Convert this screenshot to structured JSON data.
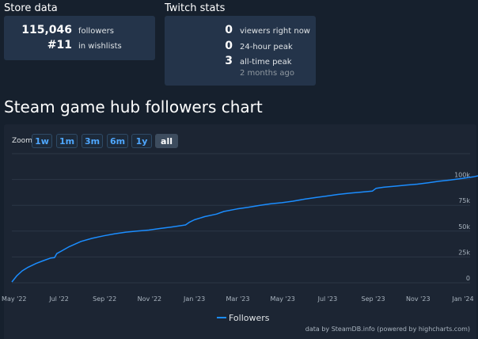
{
  "store": {
    "title": "Store data",
    "followers_value": "115,046",
    "followers_label": "followers",
    "wishlist_value": "#11",
    "wishlist_label": "in wishlists"
  },
  "twitch": {
    "title": "Twitch stats",
    "viewers_value": "0",
    "viewers_label": "viewers right now",
    "peak24_value": "0",
    "peak24_label": "24-hour peak",
    "alltime_value": "3",
    "alltime_label": "all-time peak",
    "alltime_sub": "2 months ago"
  },
  "chart_title": "Steam game hub followers chart",
  "zoom": {
    "label": "Zoom",
    "buttons": [
      "1w",
      "1m",
      "3m",
      "6m",
      "1y",
      "all"
    ],
    "active": "all"
  },
  "credits": "data by SteamDB.info (powered by highcharts.com)",
  "colors": {
    "line": "#1b8dff",
    "background": "#16202d",
    "panel": "#1c2533",
    "card": "#24344a",
    "link": "#4fa7ff"
  },
  "chart_data": {
    "type": "line",
    "title": "Steam game hub followers chart",
    "xlabel": "",
    "ylabel": "",
    "x_ticks": [
      "May '22",
      "Jul '22",
      "Sep '22",
      "Nov '22",
      "Jan '23",
      "Mar '23",
      "May '23",
      "Jul '23",
      "Sep '23",
      "Nov '23",
      "Jan '24"
    ],
    "y_ticks": [
      "0",
      "25k",
      "50k",
      "75k",
      "100k"
    ],
    "ylim": [
      0,
      125000
    ],
    "grid": true,
    "legend": "bottom-center",
    "series": [
      {
        "name": "Followers",
        "color": "#1b8dff",
        "points": [
          [
            "2022-04-28",
            800
          ],
          [
            "2022-05-05",
            7000
          ],
          [
            "2022-05-12",
            11500
          ],
          [
            "2022-05-20",
            15000
          ],
          [
            "2022-05-31",
            18700
          ],
          [
            "2022-06-10",
            21500
          ],
          [
            "2022-06-20",
            24000
          ],
          [
            "2022-06-25",
            24400
          ],
          [
            "2022-06-28",
            28200
          ],
          [
            "2022-07-05",
            31000
          ],
          [
            "2022-07-15",
            35000
          ],
          [
            "2022-07-31",
            40000
          ],
          [
            "2022-08-15",
            43000
          ],
          [
            "2022-08-31",
            45500
          ],
          [
            "2022-09-15",
            47500
          ],
          [
            "2022-09-30",
            49000
          ],
          [
            "2022-10-15",
            50000
          ],
          [
            "2022-10-31",
            51000
          ],
          [
            "2022-11-15",
            52500
          ],
          [
            "2022-12-01",
            54000
          ],
          [
            "2022-12-20",
            56000
          ],
          [
            "2022-12-25",
            58500
          ],
          [
            "2023-01-01",
            61000
          ],
          [
            "2023-01-15",
            64000
          ],
          [
            "2023-01-31",
            66500
          ],
          [
            "2023-02-10",
            69000
          ],
          [
            "2023-02-28",
            71500
          ],
          [
            "2023-03-15",
            73000
          ],
          [
            "2023-03-31",
            75000
          ],
          [
            "2023-04-15",
            76500
          ],
          [
            "2023-04-30",
            77500
          ],
          [
            "2023-05-15",
            79000
          ],
          [
            "2023-05-31",
            81000
          ],
          [
            "2023-06-15",
            82500
          ],
          [
            "2023-06-30",
            84000
          ],
          [
            "2023-07-15",
            85500
          ],
          [
            "2023-07-31",
            86700
          ],
          [
            "2023-08-15",
            87700
          ],
          [
            "2023-08-31",
            88800
          ],
          [
            "2023-09-05",
            91500
          ],
          [
            "2023-09-15",
            92500
          ],
          [
            "2023-09-30",
            93500
          ],
          [
            "2023-10-15",
            94500
          ],
          [
            "2023-10-31",
            95500
          ],
          [
            "2023-11-15",
            96800
          ],
          [
            "2023-11-30",
            98300
          ],
          [
            "2023-12-15",
            99500
          ],
          [
            "2023-12-31",
            101000
          ],
          [
            "2024-01-15",
            102500
          ],
          [
            "2024-01-31",
            105000
          ]
        ]
      }
    ]
  }
}
